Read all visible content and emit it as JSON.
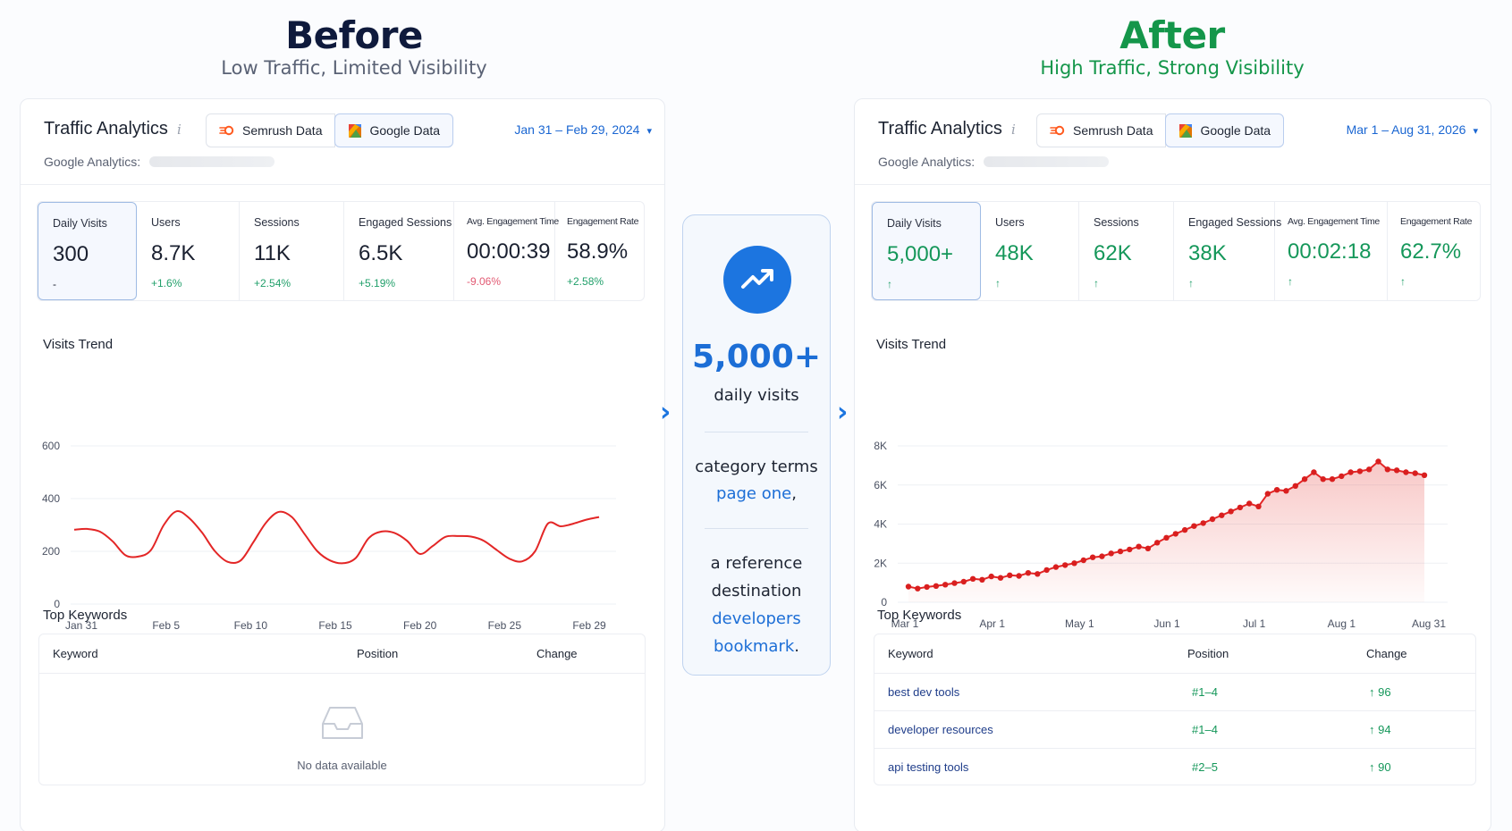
{
  "before": {
    "heading": "Before",
    "subheading": "Low Traffic, Limited Visibility",
    "panel": {
      "title": "Traffic Analytics",
      "info_glyph": "i",
      "sources": [
        "Semrush Data",
        "Google Data"
      ],
      "active_source": "Google Data",
      "date_range": "Jan 31 – Feb 29, 2024",
      "ga_label": "Google Analytics:",
      "metrics": [
        {
          "label": "Daily Visits",
          "value": "300",
          "change": "-",
          "trend": "neutral"
        },
        {
          "label": "Users",
          "value": "8.7K",
          "change": "+1.6%",
          "trend": "up"
        },
        {
          "label": "Sessions",
          "value": "11K",
          "change": "+2.54%",
          "trend": "up"
        },
        {
          "label": "Engaged Sessions",
          "value": "6.5K",
          "change": "+5.19%",
          "trend": "up"
        },
        {
          "label": "Avg. Engagement Time",
          "value": "00:00:39",
          "change": "-9.06%",
          "trend": "down"
        },
        {
          "label": "Engagement Rate",
          "value": "58.9%",
          "change": "+2.58%",
          "trend": "up"
        }
      ],
      "trend_title": "Visits Trend",
      "keywords_title": "Top Keywords",
      "keyword_columns": [
        "Keyword",
        "Position",
        "Change"
      ],
      "empty_text": "No data available"
    }
  },
  "after": {
    "heading": "After",
    "subheading": "High Traffic, Strong Visibility",
    "panel": {
      "title": "Traffic Analytics",
      "info_glyph": "i",
      "sources": [
        "Semrush Data",
        "Google Data"
      ],
      "active_source": "Google Data",
      "date_range": "Mar 1 – Aug 31, 2026",
      "ga_label": "Google Analytics:",
      "metrics": [
        {
          "label": "Daily Visits",
          "value": "5,000+",
          "change": "↑",
          "trend": "up"
        },
        {
          "label": "Users",
          "value": "48K",
          "change": "↑",
          "trend": "up"
        },
        {
          "label": "Sessions",
          "value": "62K",
          "change": "↑",
          "trend": "up"
        },
        {
          "label": "Engaged Sessions",
          "value": "38K",
          "change": "↑",
          "trend": "up"
        },
        {
          "label": "Avg. Engagement Time",
          "value": "00:02:18",
          "change": "↑",
          "trend": "up"
        },
        {
          "label": "Engagement Rate",
          "value": "62.7%",
          "change": "↑",
          "trend": "up"
        }
      ],
      "trend_title": "Visits Trend",
      "keywords_title": "Top Keywords",
      "keyword_columns": [
        "Keyword",
        "Position",
        "Change"
      ],
      "keywords": [
        {
          "keyword": "best dev tools",
          "position": "#1–4",
          "change": "↑ 96"
        },
        {
          "keyword": "developer resources",
          "position": "#1–4",
          "change": "↑ 94"
        },
        {
          "keyword": "api testing tools",
          "position": "#2–5",
          "change": "↑ 90"
        }
      ]
    }
  },
  "center_card": {
    "icon": "trending-up-icon",
    "big_number": "5,000+",
    "big_label": "daily visits",
    "line1": "category terms",
    "line1_highlight": "page one",
    "line1_suffix": ",",
    "line2a": "a reference",
    "line2b": "destination",
    "line2_highlight_1": "developers",
    "line2_highlight_2": "bookmark",
    "line2_suffix": "."
  },
  "colors": {
    "accent_blue": "#1c75e0",
    "success_green": "#15975a",
    "negative_red": "#e25a73",
    "chart_line_red": "#e32626"
  },
  "chart_data": [
    {
      "type": "line",
      "xlabel": "",
      "ylabel": "",
      "x_ticks": [
        "Jan 31",
        "Feb 5",
        "Feb 10",
        "Feb 15",
        "Feb 20",
        "Feb 25",
        "Feb 29"
      ],
      "y_ticks": [
        "0",
        "200",
        "400",
        "600"
      ],
      "ylim": [
        0,
        600
      ],
      "grid": true,
      "series": [
        {
          "values": [
            282,
            285,
            275,
            238,
            185,
            180,
            205,
            300,
            352,
            325,
            270,
            200,
            160,
            165,
            235,
            310,
            350,
            330,
            265,
            200,
            165,
            155,
            175,
            250,
            275,
            270,
            240,
            190,
            220,
            255,
            258,
            256,
            240,
            205,
            172,
            162,
            200,
            305,
            295,
            305,
            320,
            330
          ]
        }
      ]
    },
    {
      "type": "area",
      "xlabel": "",
      "ylabel": "",
      "x_ticks": [
        "Mar 1",
        "Apr 1",
        "May 1",
        "Jun 1",
        "Jul 1",
        "Aug 1",
        "Aug 31"
      ],
      "y_ticks": [
        "0",
        "2K",
        "4K",
        "6K",
        "8K"
      ],
      "ylim": [
        0,
        8000
      ],
      "grid": true,
      "series": [
        {
          "values": [
            800,
            700,
            780,
            830,
            900,
            980,
            1050,
            1200,
            1150,
            1320,
            1250,
            1380,
            1350,
            1500,
            1450,
            1650,
            1800,
            1900,
            2000,
            2150,
            2300,
            2350,
            2500,
            2600,
            2700,
            2850,
            2750,
            3050,
            3300,
            3500,
            3700,
            3900,
            4050,
            4250,
            4450,
            4650,
            4850,
            5050,
            4900,
            5550,
            5750,
            5700,
            5950,
            6300,
            6650,
            6300,
            6300,
            6450,
            6650,
            6700,
            6800,
            7200,
            6800,
            6750,
            6650,
            6600,
            6500
          ]
        }
      ]
    }
  ]
}
